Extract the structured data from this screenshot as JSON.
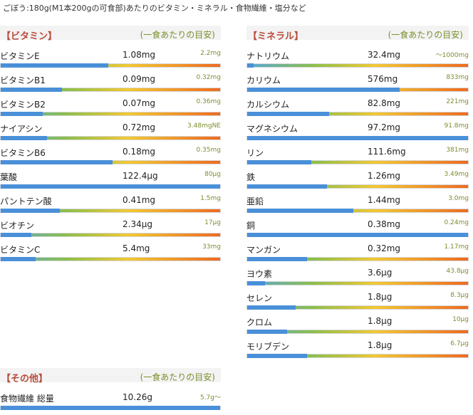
{
  "caption": "ごぼう:180g(M1本200gの可食部)あたりのビタミン・ミネラル・食物繊維・塩分など",
  "vitamins": {
    "title": "【ビタミン】",
    "note": "(一食あたりの目安)",
    "items": [
      {
        "name": "ビタミンE",
        "value": "1.08mg",
        "target": "2.2mg",
        "level": 0.49
      },
      {
        "name": "ビタミンB1",
        "value": "0.09mg",
        "target": "0.32mg",
        "level": 0.28
      },
      {
        "name": "ビタミンB2",
        "value": "0.07mg",
        "target": "0.36mg",
        "level": 0.19
      },
      {
        "name": "ナイアシン",
        "value": "0.72mg",
        "target": "3.48mgNE",
        "level": 0.21
      },
      {
        "name": "ビタミンB6",
        "value": "0.18mg",
        "target": "0.35mg",
        "level": 0.51
      },
      {
        "name": "葉酸",
        "value": "122.4μg",
        "target": "80μg",
        "level": 1.0
      },
      {
        "name": "パントテン酸",
        "value": "0.41mg",
        "target": "1.5mg",
        "level": 0.27
      },
      {
        "name": "ビオチン",
        "value": "2.34μg",
        "target": "17μg",
        "level": 0.14
      },
      {
        "name": "ビタミンC",
        "value": "5.4mg",
        "target": "33mg",
        "level": 0.16
      }
    ]
  },
  "minerals": {
    "title": "【ミネラル】",
    "note": "(一食あたりの目安)",
    "items": [
      {
        "name": "ナトリウム",
        "value": "32.4mg",
        "target": "～1000mg",
        "level": 0.03
      },
      {
        "name": "カリウム",
        "value": "576mg",
        "target": "833mg",
        "level": 0.69
      },
      {
        "name": "カルシウム",
        "value": "82.8mg",
        "target": "221mg",
        "level": 0.37
      },
      {
        "name": "マグネシウム",
        "value": "97.2mg",
        "target": "91.8mg",
        "level": 1.0
      },
      {
        "name": "リン",
        "value": "111.6mg",
        "target": "381mg",
        "level": 0.29
      },
      {
        "name": "鉄",
        "value": "1.26mg",
        "target": "3.49mg",
        "level": 0.36
      },
      {
        "name": "亜鉛",
        "value": "1.44mg",
        "target": "3.0mg",
        "level": 0.48
      },
      {
        "name": "銅",
        "value": "0.38mg",
        "target": "0.24mg",
        "level": 1.0
      },
      {
        "name": "マンガン",
        "value": "0.32mg",
        "target": "1.17mg",
        "level": 0.27
      },
      {
        "name": "ヨウ素",
        "value": "3.6μg",
        "target": "43.8μg",
        "level": 0.08
      },
      {
        "name": "セレン",
        "value": "1.8μg",
        "target": "8.3μg",
        "level": 0.22
      },
      {
        "name": "クロム",
        "value": "1.8μg",
        "target": "10μg",
        "level": 0.18
      },
      {
        "name": "モリブデン",
        "value": "1.8μg",
        "target": "6.7μg",
        "level": 0.27
      }
    ]
  },
  "others": {
    "title": "【その他】",
    "note": "(一食あたりの目安)",
    "items": [
      {
        "name": "食物繊維 総量",
        "value": "10.26g",
        "target": "5.7g～",
        "level": 1.0
      }
    ]
  }
}
